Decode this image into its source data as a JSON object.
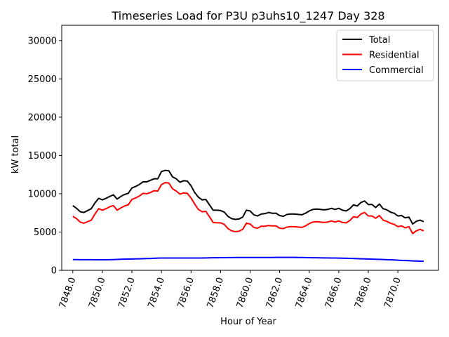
{
  "chart_data": {
    "type": "line",
    "title": "Timeseries Load for P3U p3uhs10_1247  Day 328",
    "xlabel": "Hour of Year",
    "ylabel": "kW total",
    "xlim": [
      7847.25,
      7872.75
    ],
    "ylim": [
      0,
      32000
    ],
    "xticks": [
      7848,
      7850,
      7852,
      7854,
      7856,
      7858,
      7860,
      7862,
      7864,
      7866,
      7868,
      7870
    ],
    "xtick_labels": [
      "7848.0",
      "7850.0",
      "7852.0",
      "7854.0",
      "7856.0",
      "7858.0",
      "7860.0",
      "7862.0",
      "7864.0",
      "7866.0",
      "7868.0",
      "7870.0"
    ],
    "yticks": [
      0,
      5000,
      10000,
      15000,
      20000,
      25000,
      30000
    ],
    "ytick_labels": [
      "0",
      "5000",
      "10000",
      "15000",
      "20000",
      "25000",
      "30000"
    ],
    "legend_position": "top-right",
    "x_start": 7848,
    "x_step": 0.25,
    "series": [
      {
        "name": "Total",
        "color": "#000000",
        "values": [
          8450,
          8100,
          7650,
          7550,
          7800,
          8050,
          8800,
          9400,
          9200,
          9400,
          9650,
          9850,
          9300,
          9650,
          9900,
          10050,
          10750,
          10950,
          11200,
          11550,
          11550,
          11750,
          11950,
          11950,
          12900,
          13050,
          13000,
          12200,
          11950,
          11500,
          11700,
          11650,
          11050,
          10150,
          9550,
          9200,
          9250,
          8550,
          7850,
          7850,
          7800,
          7600,
          7050,
          6750,
          6650,
          6700,
          6950,
          7850,
          7750,
          7250,
          7100,
          7350,
          7400,
          7550,
          7450,
          7450,
          7150,
          7050,
          7300,
          7350,
          7350,
          7300,
          7250,
          7450,
          7750,
          7950,
          8000,
          7950,
          7900,
          7950,
          8100,
          7950,
          8100,
          7850,
          7750,
          8050,
          8550,
          8400,
          8850,
          9050,
          8600,
          8600,
          8200,
          8650,
          8050,
          7900,
          7600,
          7450,
          7100,
          7150,
          6850,
          6950,
          6050,
          6400,
          6550,
          6350
        ],
        "stroke_width": 2
      },
      {
        "name": "Residential",
        "color": "#ff0000",
        "values": [
          7050,
          6750,
          6300,
          6150,
          6350,
          6550,
          7350,
          8050,
          7850,
          8050,
          8300,
          8450,
          7850,
          8150,
          8400,
          8550,
          9250,
          9450,
          9700,
          10050,
          10000,
          10150,
          10400,
          10350,
          11200,
          11450,
          11400,
          10650,
          10350,
          9950,
          10100,
          10050,
          9450,
          8650,
          7950,
          7650,
          7700,
          7000,
          6250,
          6200,
          6200,
          6000,
          5450,
          5150,
          5050,
          5100,
          5350,
          6150,
          6050,
          5600,
          5500,
          5750,
          5750,
          5850,
          5800,
          5800,
          5500,
          5450,
          5650,
          5700,
          5700,
          5650,
          5600,
          5800,
          6100,
          6300,
          6350,
          6300,
          6250,
          6300,
          6450,
          6300,
          6450,
          6250,
          6200,
          6500,
          7000,
          6900,
          7350,
          7550,
          7100,
          7100,
          6800,
          7150,
          6550,
          6400,
          6150,
          6000,
          5700,
          5800,
          5550,
          5700,
          4800,
          5150,
          5350,
          5150
        ],
        "stroke_width": 2
      },
      {
        "name": "Commercial",
        "color": "#0000ff",
        "values": [
          1400,
          1400,
          1390,
          1390,
          1390,
          1390,
          1380,
          1380,
          1380,
          1380,
          1390,
          1400,
          1420,
          1440,
          1460,
          1470,
          1480,
          1490,
          1500,
          1510,
          1530,
          1550,
          1570,
          1590,
          1600,
          1600,
          1600,
          1600,
          1600,
          1600,
          1600,
          1600,
          1600,
          1600,
          1610,
          1610,
          1620,
          1630,
          1640,
          1640,
          1650,
          1650,
          1660,
          1660,
          1670,
          1670,
          1670,
          1670,
          1670,
          1670,
          1670,
          1670,
          1670,
          1670,
          1670,
          1680,
          1680,
          1680,
          1680,
          1680,
          1680,
          1670,
          1670,
          1660,
          1650,
          1640,
          1640,
          1630,
          1620,
          1620,
          1610,
          1600,
          1590,
          1580,
          1570,
          1560,
          1540,
          1520,
          1500,
          1490,
          1480,
          1460,
          1440,
          1430,
          1410,
          1390,
          1370,
          1350,
          1320,
          1300,
          1280,
          1260,
          1230,
          1210,
          1190,
          1180
        ],
        "stroke_width": 2
      }
    ]
  }
}
